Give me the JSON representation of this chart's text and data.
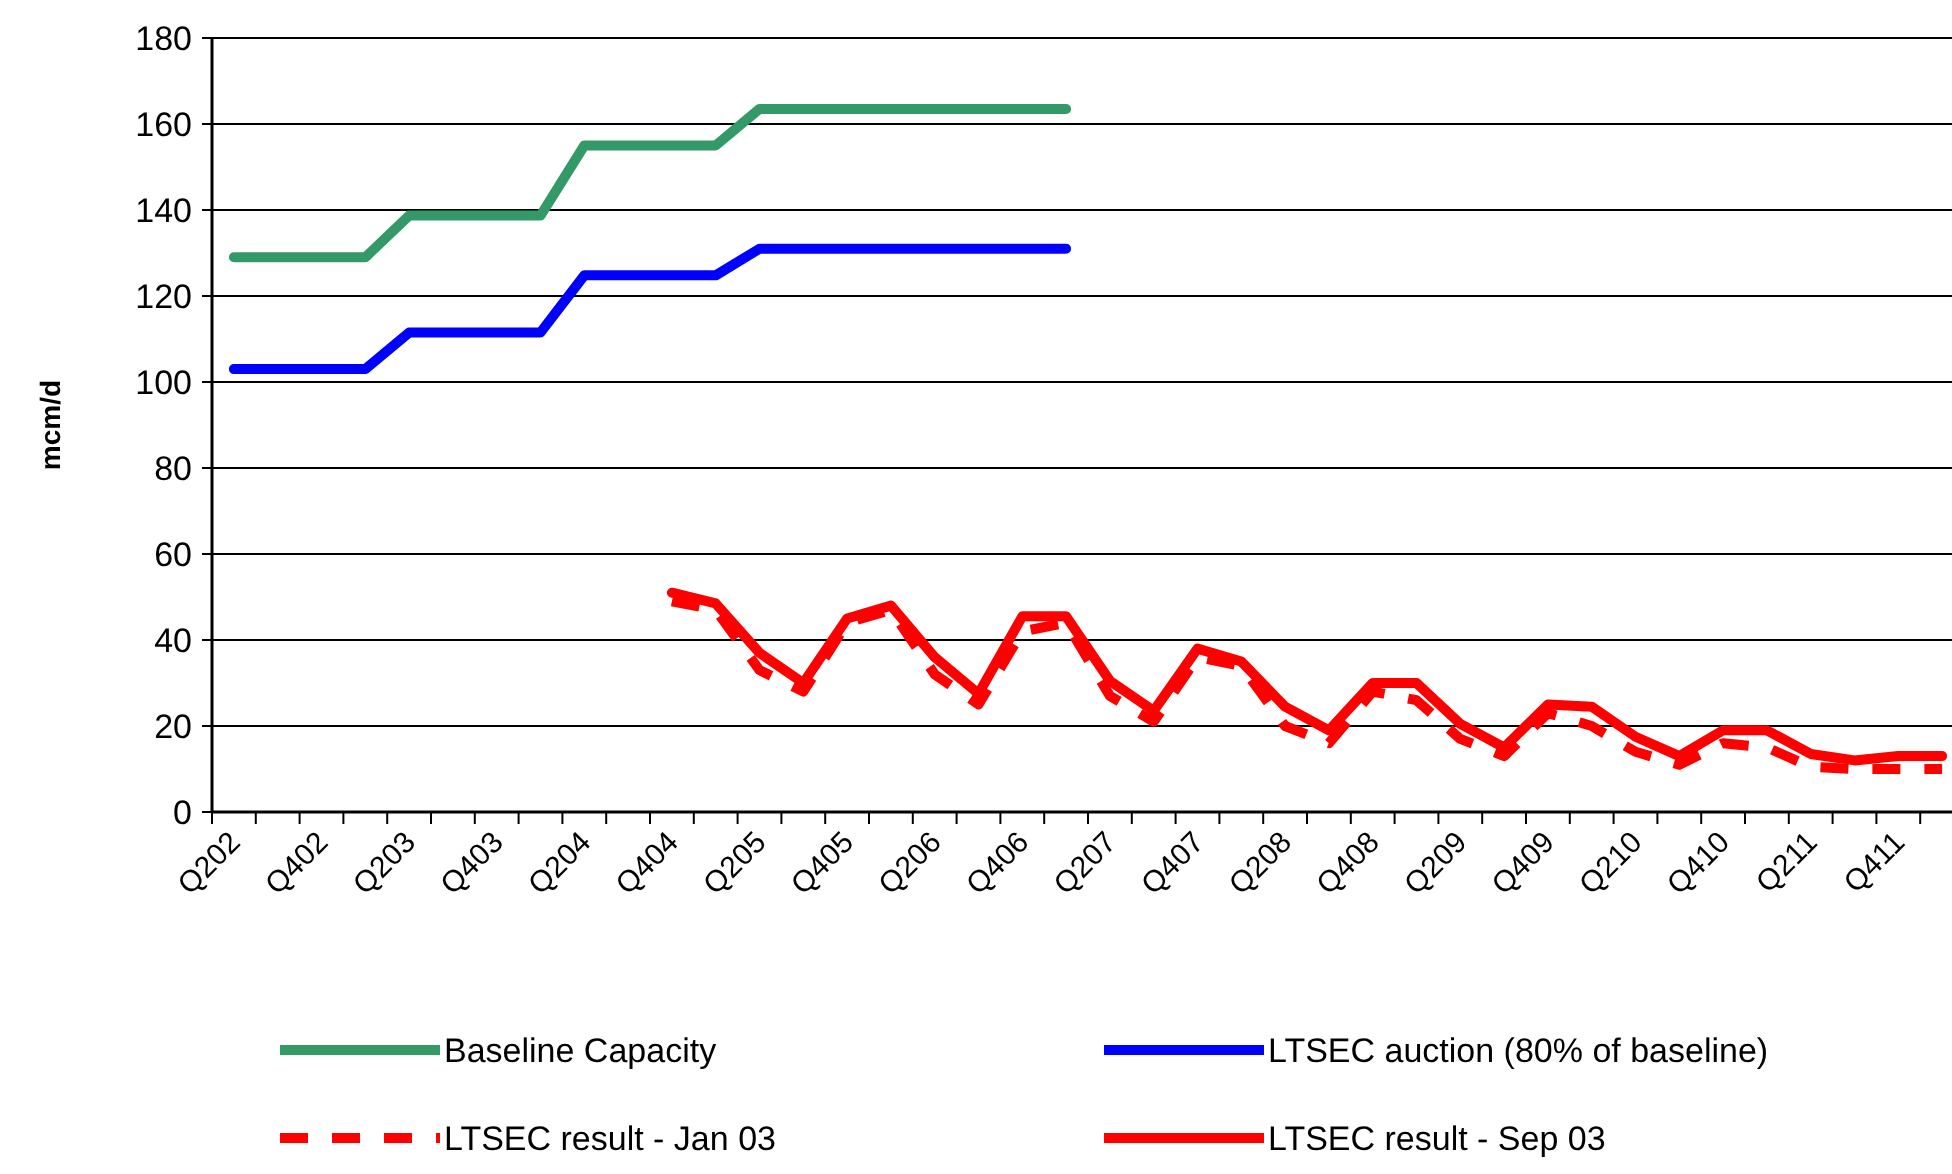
{
  "chart_data": {
    "type": "line",
    "ylabel": "mcm/d",
    "categories": [
      "Q202",
      null,
      "Q402",
      null,
      "Q203",
      null,
      "Q403",
      null,
      "Q204",
      null,
      "Q404",
      null,
      "Q205",
      null,
      "Q405",
      null,
      "Q206",
      null,
      "Q406",
      null,
      "Q207",
      null,
      "Q407",
      null,
      "Q208",
      null,
      "Q408",
      null,
      "Q209",
      null,
      "Q409",
      null,
      "Q210",
      null,
      "Q410",
      null,
      "Q211",
      null,
      "Q411",
      null
    ],
    "series": [
      {
        "name": "Baseline Capacity",
        "color": "#339966",
        "line_style": "solid",
        "values": [
          129,
          129,
          129,
          129,
          138.7,
          138.7,
          138.7,
          138.7,
          155,
          155,
          155,
          155,
          163.5,
          163.5,
          163.5,
          163.5,
          163.5,
          163.5,
          163.5,
          163.5,
          null,
          null,
          null,
          null,
          null,
          null,
          null,
          null,
          null,
          null,
          null,
          null,
          null,
          null,
          null,
          null,
          null,
          null,
          null,
          null
        ]
      },
      {
        "name": "LTSEC auction (80% of baseline)",
        "color": "#0000ff",
        "line_style": "solid",
        "values": [
          103,
          103,
          103,
          103,
          111.5,
          111.5,
          111.5,
          111.5,
          124.8,
          124.8,
          124.8,
          124.8,
          131,
          131,
          131,
          131,
          131,
          131,
          131,
          131,
          null,
          null,
          null,
          null,
          null,
          null,
          null,
          null,
          null,
          null,
          null,
          null,
          null,
          null,
          null,
          null,
          null,
          null,
          null,
          null
        ]
      },
      {
        "name": "LTSEC result - Jan 03",
        "color": "#ff0000",
        "line_style": "dashed",
        "values": [
          null,
          null,
          null,
          null,
          null,
          null,
          null,
          null,
          null,
          null,
          49,
          47,
          33,
          28,
          44,
          47,
          32,
          25,
          42,
          44,
          27,
          21,
          36,
          34,
          20,
          16,
          28,
          26,
          17,
          13,
          23,
          20,
          14,
          11,
          16,
          15,
          10.5,
          10,
          10,
          10
        ]
      },
      {
        "name": "LTSEC result - Sep 03",
        "color": "#ff0000",
        "line_style": "solid",
        "values": [
          null,
          null,
          null,
          null,
          null,
          null,
          null,
          null,
          null,
          null,
          51,
          48.5,
          37,
          30,
          45,
          48,
          36,
          27.5,
          45.5,
          45.5,
          30.5,
          23.5,
          38,
          35,
          24.5,
          19,
          30,
          30,
          20.5,
          15,
          25,
          24.5,
          17.5,
          13,
          19,
          19,
          13.5,
          12,
          13,
          13
        ]
      }
    ],
    "ylim": [
      0,
      180
    ],
    "yticks": [
      0,
      20,
      40,
      60,
      80,
      100,
      120,
      140,
      160,
      180
    ],
    "grid": "y",
    "legend": "bottom",
    "marker": "none"
  }
}
